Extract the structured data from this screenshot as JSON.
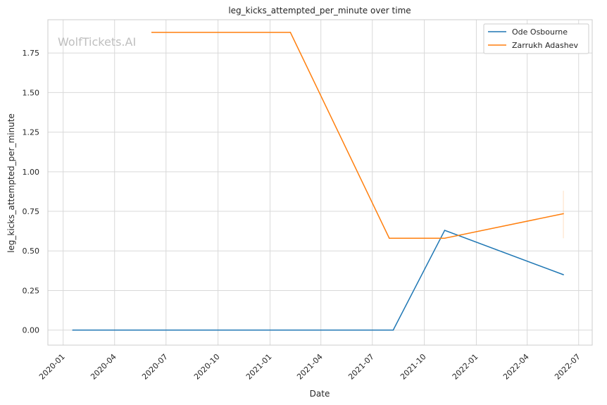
{
  "colors": {
    "background": "#ffffff",
    "grid": "#d9d9d9",
    "frame": "#cccccc",
    "watermark": "#bfbfbf",
    "series_1": "#1f77b4",
    "series_2": "#ff7f0e"
  },
  "chart_data": {
    "type": "line",
    "title": "leg_kicks_attempted_per_minute over time",
    "xlabel": "Date",
    "ylabel": "leg_kicks_attempted_per_minute",
    "watermark": "WolfTickets.AI",
    "xlim": [
      "2019-12-05",
      "2022-07-25"
    ],
    "ylim": [
      -0.095,
      1.96
    ],
    "x_ticks": [
      "2020-01",
      "2020-04",
      "2020-07",
      "2020-10",
      "2021-01",
      "2021-04",
      "2021-07",
      "2021-10",
      "2022-01",
      "2022-04",
      "2022-07"
    ],
    "y_ticks": [
      "0.00",
      "0.25",
      "0.50",
      "0.75",
      "1.00",
      "1.25",
      "1.50",
      "1.75"
    ],
    "grid": true,
    "legend_position": "top-right",
    "series": [
      {
        "name": "Ode Osbourne",
        "x": [
          "2020-01-18",
          "2021-08-07",
          "2021-11-06",
          "2022-06-04"
        ],
        "y": [
          0.0,
          0.0,
          0.63,
          0.35
        ]
      },
      {
        "name": "Zarrukh Adashev",
        "x": [
          "2020-06-06",
          "2021-02-06",
          "2021-07-31",
          "2021-11-06",
          "2022-06-04"
        ],
        "y": [
          1.88,
          1.88,
          0.58,
          0.58,
          0.735
        ],
        "error_bar": {
          "x": "2022-06-04",
          "low": 0.58,
          "high": 0.88
        }
      }
    ]
  }
}
